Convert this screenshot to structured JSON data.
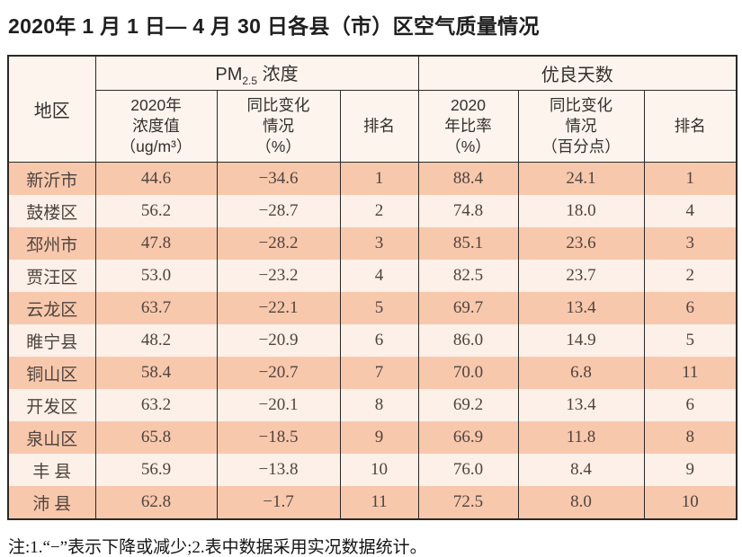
{
  "title": "2020年 1 月 1 日— 4 月 30 日各县（市）区空气质量情况",
  "table": {
    "region_header": "地区",
    "pm_group": {
      "prefix": "PM",
      "sub": "2.5",
      "suffix": " 浓度"
    },
    "good_group": "优良天数",
    "sub_headers": [
      "2020年\n浓度值\n（ug/m³）",
      "同比变化\n情况\n（%）",
      "排名",
      "2020\n年比率\n（%）",
      "同比变化\n情况\n（百分点）",
      "排名"
    ],
    "rows": [
      [
        "新沂市",
        "44.6",
        "−34.6",
        "1",
        "88.4",
        "24.1",
        "1"
      ],
      [
        "鼓楼区",
        "56.2",
        "−28.7",
        "2",
        "74.8",
        "18.0",
        "4"
      ],
      [
        "邳州市",
        "47.8",
        "−28.2",
        "3",
        "85.1",
        "23.6",
        "3"
      ],
      [
        "贾汪区",
        "53.0",
        "−23.2",
        "4",
        "82.5",
        "23.7",
        "2"
      ],
      [
        "云龙区",
        "63.7",
        "−22.1",
        "5",
        "69.7",
        "13.4",
        "6"
      ],
      [
        "睢宁县",
        "48.2",
        "−20.9",
        "6",
        "86.0",
        "14.9",
        "5"
      ],
      [
        "铜山区",
        "58.4",
        "−20.7",
        "7",
        "70.0",
        "6.8",
        "11"
      ],
      [
        "开发区",
        "63.2",
        "−20.1",
        "8",
        "69.2",
        "13.4",
        "6"
      ],
      [
        "泉山区",
        "65.8",
        "−18.5",
        "9",
        "66.9",
        "11.8",
        "8"
      ],
      [
        "丰 县",
        "56.9",
        "−13.8",
        "10",
        "76.0",
        "8.4",
        "9"
      ],
      [
        "沛 县",
        "62.8",
        "−1.7",
        "11",
        "72.5",
        "8.0",
        "10"
      ]
    ]
  },
  "footnote": "注:1.“−”表示下降或减少;2.表中数据采用实况数据统计。",
  "colors": {
    "row_odd": "#f8c8ad",
    "row_even": "#fcf0e8",
    "header_bg": "#fdf5ed",
    "border": "#2b2926",
    "data_text": "#4e443e"
  }
}
